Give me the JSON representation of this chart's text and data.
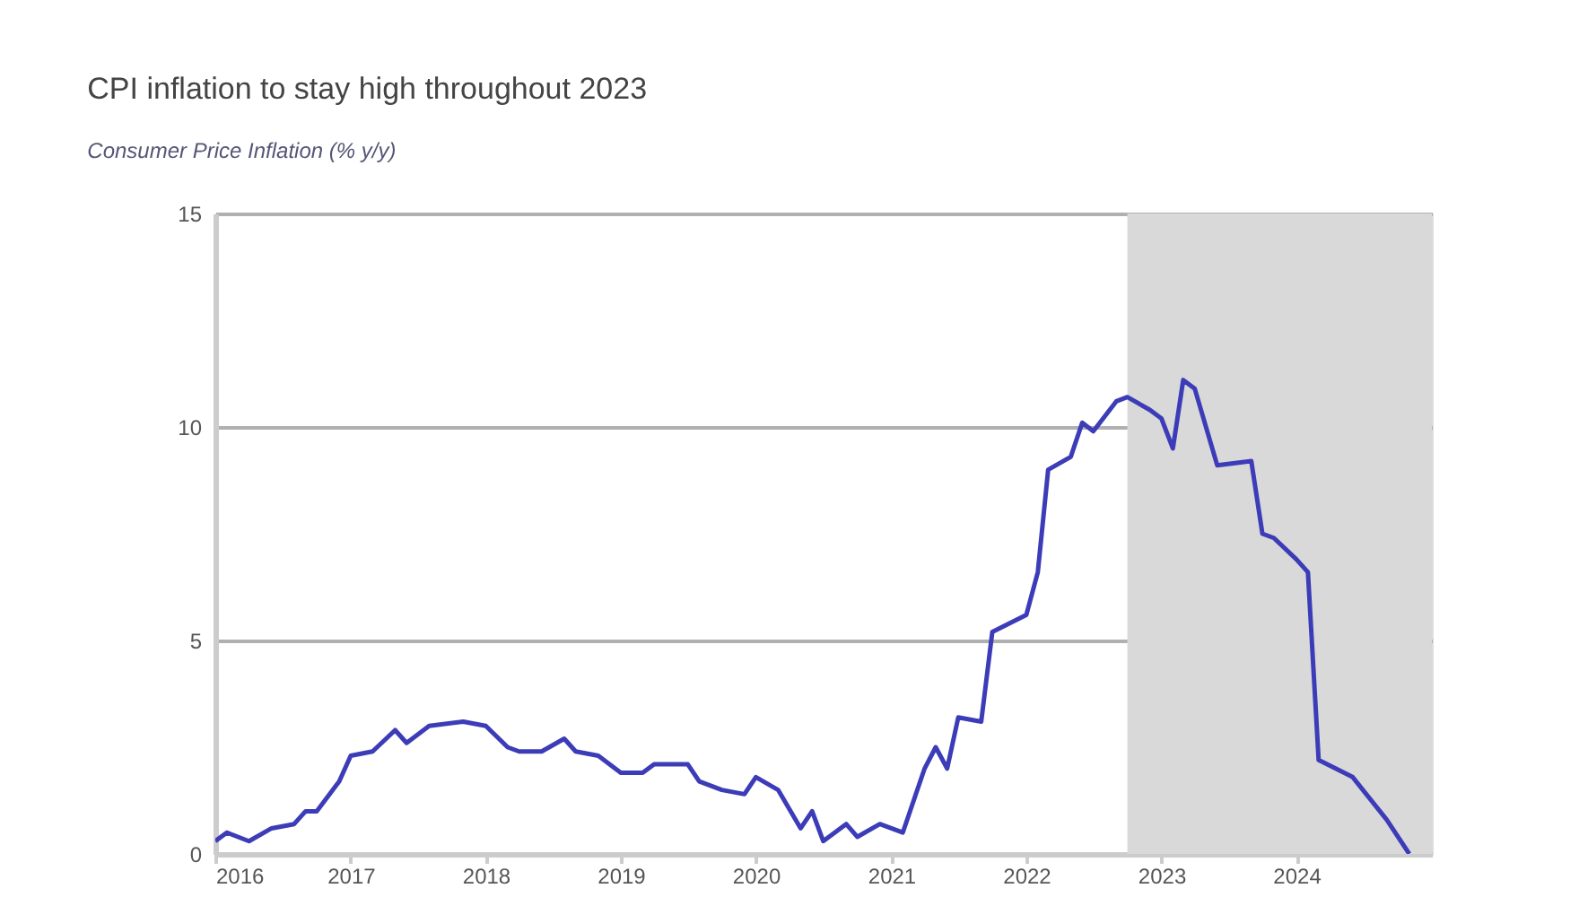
{
  "chart_data": {
    "type": "line",
    "title": "CPI inflation to stay high throughout 2023",
    "subtitle": "Consumer Price Inflation (% y/y)",
    "x": [
      "2016-01",
      "2016-02",
      "2016-04",
      "2016-06",
      "2016-08",
      "2016-09",
      "2016-10",
      "2016-12",
      "2017-01",
      "2017-03",
      "2017-05",
      "2017-06",
      "2017-08",
      "2017-11",
      "2018-01",
      "2018-03",
      "2018-04",
      "2018-06",
      "2018-08",
      "2018-09",
      "2018-11",
      "2019-01",
      "2019-03",
      "2019-04",
      "2019-07",
      "2019-08",
      "2019-10",
      "2019-12",
      "2020-01",
      "2020-03",
      "2020-05",
      "2020-06",
      "2020-07",
      "2020-09",
      "2020-10",
      "2020-12",
      "2021-02",
      "2021-04",
      "2021-05",
      "2021-06",
      "2021-07",
      "2021-09",
      "2021-10",
      "2022-01",
      "2022-02",
      "2022-03",
      "2022-05",
      "2022-06",
      "2022-07",
      "2022-09",
      "2022-10",
      "2022-12",
      "2023-01",
      "2023-02",
      "2023-03",
      "2023-04",
      "2023-06",
      "2023-09",
      "2023-10",
      "2023-11",
      "2024-01",
      "2024-02",
      "2024-03",
      "2024-06",
      "2024-09",
      "2024-11"
    ],
    "series": [
      {
        "color": "#3c3cb8",
        "values": [
          0.3,
          0.5,
          0.3,
          0.6,
          0.7,
          1.0,
          1.0,
          1.7,
          2.3,
          2.4,
          2.9,
          2.6,
          3.0,
          3.1,
          3.0,
          2.5,
          2.4,
          2.4,
          2.7,
          2.4,
          2.3,
          1.9,
          1.9,
          2.1,
          2.1,
          1.7,
          1.5,
          1.4,
          1.8,
          1.5,
          0.6,
          1.0,
          0.3,
          0.7,
          0.4,
          0.7,
          0.5,
          2.0,
          2.5,
          2.0,
          3.2,
          3.1,
          5.2,
          5.6,
          6.6,
          9.0,
          9.3,
          10.1,
          9.9,
          10.6,
          10.7,
          10.4,
          10.2,
          9.5,
          11.1,
          10.9,
          9.1,
          9.2,
          7.5,
          7.4,
          6.9,
          6.6,
          2.2,
          1.8,
          0.8,
          0.0
        ]
      }
    ],
    "xlim": [
      "2016-01",
      "2025-01"
    ],
    "xticks": [
      "2016",
      "2017",
      "2018",
      "2019",
      "2020",
      "2021",
      "2022",
      "2023",
      "2024"
    ],
    "ylim": [
      0,
      15
    ],
    "yticks": [
      0,
      5,
      10,
      15
    ],
    "grid": "y",
    "marker": "none",
    "line_style": "solid",
    "bands": [
      {
        "axis": "x",
        "from": "2022-10",
        "to": "2025-01",
        "color": "#d9d9d9"
      }
    ]
  }
}
